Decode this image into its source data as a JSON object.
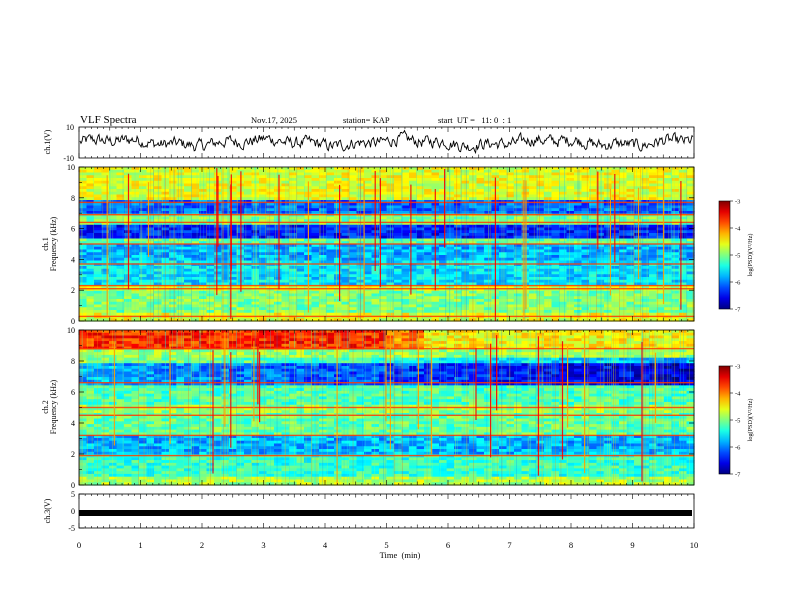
{
  "header": {
    "title": "VLF Spectra",
    "date": "Nov.17, 2025",
    "station": "station= KAP",
    "start": "start  UT =   11: 0  : 1"
  },
  "chart_data": [
    {
      "type": "line",
      "name": "channel-1-waveform",
      "ylabel": "ch.1(V)",
      "ylim": [
        -10,
        10
      ],
      "yticks": [
        "10",
        "-10"
      ],
      "xlim": [
        0,
        10
      ],
      "description_values": "noisy waveform oscillating roughly between -5 and 5 V"
    },
    {
      "type": "heatmap",
      "name": "channel-1-spectrogram",
      "ylabel": "ch.1 Frequency (kHz)",
      "ylim": [
        0,
        10
      ],
      "yticks": [
        "0",
        "2",
        "4",
        "6",
        "8",
        "10"
      ],
      "xlim": [
        0,
        10
      ],
      "bands_khz": [
        {
          "from": 0,
          "to": 0.5,
          "level": -4.6
        },
        {
          "from": 0.5,
          "to": 2.0,
          "level": -5.0
        },
        {
          "from": 2.0,
          "to": 2.4,
          "level": -4.7
        },
        {
          "from": 2.4,
          "to": 4.0,
          "level": -5.6
        },
        {
          "from": 4.0,
          "to": 5.0,
          "level": -5.8
        },
        {
          "from": 5.0,
          "to": 5.4,
          "level": -5.1
        },
        {
          "from": 5.4,
          "to": 6.2,
          "level": -6.4
        },
        {
          "from": 6.2,
          "to": 7.0,
          "level": -5.0
        },
        {
          "from": 7.0,
          "to": 7.8,
          "level": -6.1
        },
        {
          "from": 7.8,
          "to": 10.0,
          "level": -4.6
        }
      ],
      "lines_khz": [
        0.3,
        2.1,
        2.3,
        3.7,
        5.0,
        6.4,
        6.9,
        7.7
      ],
      "colorbar": {
        "label": "log(PSD)(V²/Hz)",
        "range": [
          -7,
          -3
        ],
        "ticks": [
          "-3",
          "-4",
          "-5",
          "-6",
          "-7"
        ]
      }
    },
    {
      "type": "heatmap",
      "name": "channel-2-spectrogram",
      "ylabel": "ch.2 Frequency (kHz)",
      "ylim": [
        0,
        10
      ],
      "yticks": [
        "0",
        "2",
        "4",
        "6",
        "8",
        "10"
      ],
      "xlim": [
        0,
        10
      ],
      "bands_khz": [
        {
          "from": 0,
          "to": 0.6,
          "level": -4.8
        },
        {
          "from": 0.6,
          "to": 2.0,
          "level": -5.3
        },
        {
          "from": 2.0,
          "to": 3.2,
          "level": -5.8
        },
        {
          "from": 3.2,
          "to": 4.6,
          "level": -5.1
        },
        {
          "from": 4.6,
          "to": 5.2,
          "level": -4.9
        },
        {
          "from": 5.2,
          "to": 6.5,
          "level": -5.2
        },
        {
          "from": 6.5,
          "to": 7.8,
          "level": -5.8
        },
        {
          "from": 7.8,
          "to": 8.7,
          "level": -4.9
        },
        {
          "from": 8.7,
          "to": 10.0,
          "level": -4.0
        }
      ],
      "lines_khz": [
        1.9,
        3.2,
        4.5,
        5.0,
        6.6,
        8.8
      ],
      "colorbar": {
        "label": "log(PSD)(V²/Hz)",
        "range": [
          -7,
          -3
        ],
        "ticks": [
          "-3",
          "-4",
          "-5",
          "-6",
          "-7"
        ]
      }
    },
    {
      "type": "line",
      "name": "channel-3-signal",
      "ylabel": "ch.3(V)",
      "ylim": [
        -5,
        5
      ],
      "yticks": [
        "5",
        "0",
        "-5"
      ],
      "xlim": [
        0,
        10
      ],
      "level_v": -0.6
    }
  ],
  "xaxis": {
    "label": "Time  (min)",
    "ticks": [
      "0",
      "1",
      "2",
      "3",
      "4",
      "5",
      "6",
      "7",
      "8",
      "9",
      "10"
    ]
  }
}
